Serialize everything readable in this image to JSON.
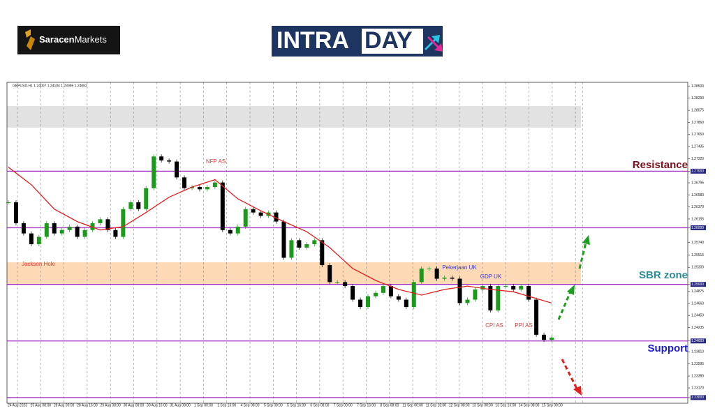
{
  "header": {
    "brand_a": "Saracen",
    "brand_b": "Markets",
    "logo_a": "INTRA",
    "logo_b": "DAY"
  },
  "chart_data": {
    "type": "candlestick",
    "subtitle": "GBPUSD,H1 1.24007 1.24104 1.23995 1.24062",
    "ylim": [
      1.229,
      1.2857
    ],
    "yticks": [
      {
        "value": 1.285,
        "label": "1.28500"
      },
      {
        "value": 1.2829,
        "label": "1.28290"
      },
      {
        "value": 1.28075,
        "label": "1.28075"
      },
      {
        "value": 1.2786,
        "label": "1.27860"
      },
      {
        "value": 1.2765,
        "label": "1.27650"
      },
      {
        "value": 1.27435,
        "label": "1.27435"
      },
      {
        "value": 1.2722,
        "label": "1.27220"
      },
      {
        "value": 1.27,
        "label": "1.27000"
      },
      {
        "value": 1.26795,
        "label": "1.26795"
      },
      {
        "value": 1.2658,
        "label": "1.26580"
      },
      {
        "value": 1.2637,
        "label": "1.26370"
      },
      {
        "value": 1.26155,
        "label": "1.26155"
      },
      {
        "value": 1.26,
        "label": "1.26000"
      },
      {
        "value": 1.2574,
        "label": "1.25740"
      },
      {
        "value": 1.25515,
        "label": "1.25515"
      },
      {
        "value": 1.253,
        "label": "1.25300"
      },
      {
        "value": 1.25,
        "label": "1.25000"
      },
      {
        "value": 1.24875,
        "label": "1.24875"
      },
      {
        "value": 1.2466,
        "label": "1.24660"
      },
      {
        "value": 1.2445,
        "label": "1.24450"
      },
      {
        "value": 1.24235,
        "label": "1.24235"
      },
      {
        "value": 1.24,
        "label": "1.24000"
      },
      {
        "value": 1.2381,
        "label": "1.23810"
      },
      {
        "value": 1.23595,
        "label": "1.23595"
      },
      {
        "value": 1.2338,
        "label": "1.23380"
      },
      {
        "value": 1.2317,
        "label": "1.23170"
      },
      {
        "value": 1.23,
        "label": "1.23000"
      }
    ],
    "x_labels": [
      "24 Aug 2023",
      "25 Aug 08:00",
      "28 Aug 00:00",
      "28 Aug 16:00",
      "29 Aug 08:00",
      "30 Aug 00:00",
      "30 Aug 16:00",
      "31 Aug 08:00",
      "1 Sep 00:00",
      "1 Sep 16:00",
      "4 Sep 08:00",
      "5 Sep 00:00",
      "5 Sep 16:00",
      "6 Sep 08:00",
      "7 Sep 00:00",
      "7 Sep 16:00",
      "8 Sep 08:00",
      "11 Sep 00:00",
      "11 Sep 16:00",
      "12 Sep 08:00",
      "13 Sep 00:00",
      "13 Sep 16:00",
      "14 Sep 08:00",
      "15 Sep 00:00"
    ],
    "series": [
      {
        "color": "#000000",
        "up_color": "#1c9a1c",
        "values": [
          1.2645,
          1.2608,
          1.259,
          1.2571,
          1.2584,
          1.2608,
          1.259,
          1.2596,
          1.2602,
          1.2584,
          1.2596,
          1.2608,
          1.2615,
          1.2596,
          1.2584,
          1.2633,
          1.2645,
          1.2633,
          1.267,
          1.2726,
          1.2719,
          1.2717,
          1.2689,
          1.267,
          1.2672,
          1.2668,
          1.2672,
          1.268,
          1.2596,
          1.259,
          1.2602,
          1.2633,
          1.2627,
          1.2621,
          1.2627,
          1.2611,
          1.2547,
          1.2578,
          1.2565,
          1.2571,
          1.2578,
          1.2534,
          1.2504,
          1.2504,
          1.2497,
          1.2473,
          1.246,
          1.2479,
          1.2485,
          1.2497,
          1.2479,
          1.2473,
          1.246,
          1.2504,
          1.2528,
          1.2528,
          1.251,
          1.2512,
          1.251,
          1.2467,
          1.2473,
          1.2491,
          1.2497,
          1.2454,
          1.2497,
          1.2497,
          1.2491,
          1.2497,
          1.2473,
          1.2411,
          1.2402,
          1.2406
        ]
      },
      {
        "color": "#e02020",
        "x": [
          0,
          3,
          6,
          9,
          12,
          15,
          18,
          21,
          24,
          27,
          30,
          33,
          36,
          39,
          42,
          45,
          48,
          51,
          54,
          57,
          60,
          63,
          66,
          69,
          71
        ],
        "values": [
          1.2707,
          1.2676,
          1.2633,
          1.2611,
          1.2596,
          1.2602,
          1.2627,
          1.2654,
          1.2672,
          1.2685,
          1.2651,
          1.263,
          1.2611,
          1.2593,
          1.2565,
          1.2528,
          1.2507,
          1.2491,
          1.2481,
          1.2491,
          1.2497,
          1.2491,
          1.2487,
          1.2475,
          1.2467
        ]
      }
    ],
    "zones": [
      {
        "from": 1.2777,
        "to": 1.2815,
        "color": "#e2e2e2"
      },
      {
        "from": 1.25,
        "to": 1.2539,
        "color": "#fdd9b5"
      }
    ],
    "levels": [
      1.27,
      1.26,
      1.25,
      1.24,
      1.23
    ],
    "level_color": "#a32cc4",
    "zone_labels": [
      {
        "text": "Resistance",
        "color": "#7d0f1c"
      },
      {
        "text": "SBR zone",
        "color": "#2f8c96"
      },
      {
        "text": "Support",
        "color": "#1b1bc8"
      }
    ],
    "annotations": [
      {
        "text": "NFP AS",
        "color": "#e04040"
      },
      {
        "text": "Jackson Hole",
        "color": "#e04040"
      },
      {
        "text": "Pekerjaan UK",
        "color": "#3a3ad0"
      },
      {
        "text": "GDP UK",
        "color": "#3a3ad0"
      },
      {
        "text": "CPI AS",
        "color": "#e04040"
      },
      {
        "text": "PPI AS",
        "color": "#e04040"
      }
    ]
  }
}
